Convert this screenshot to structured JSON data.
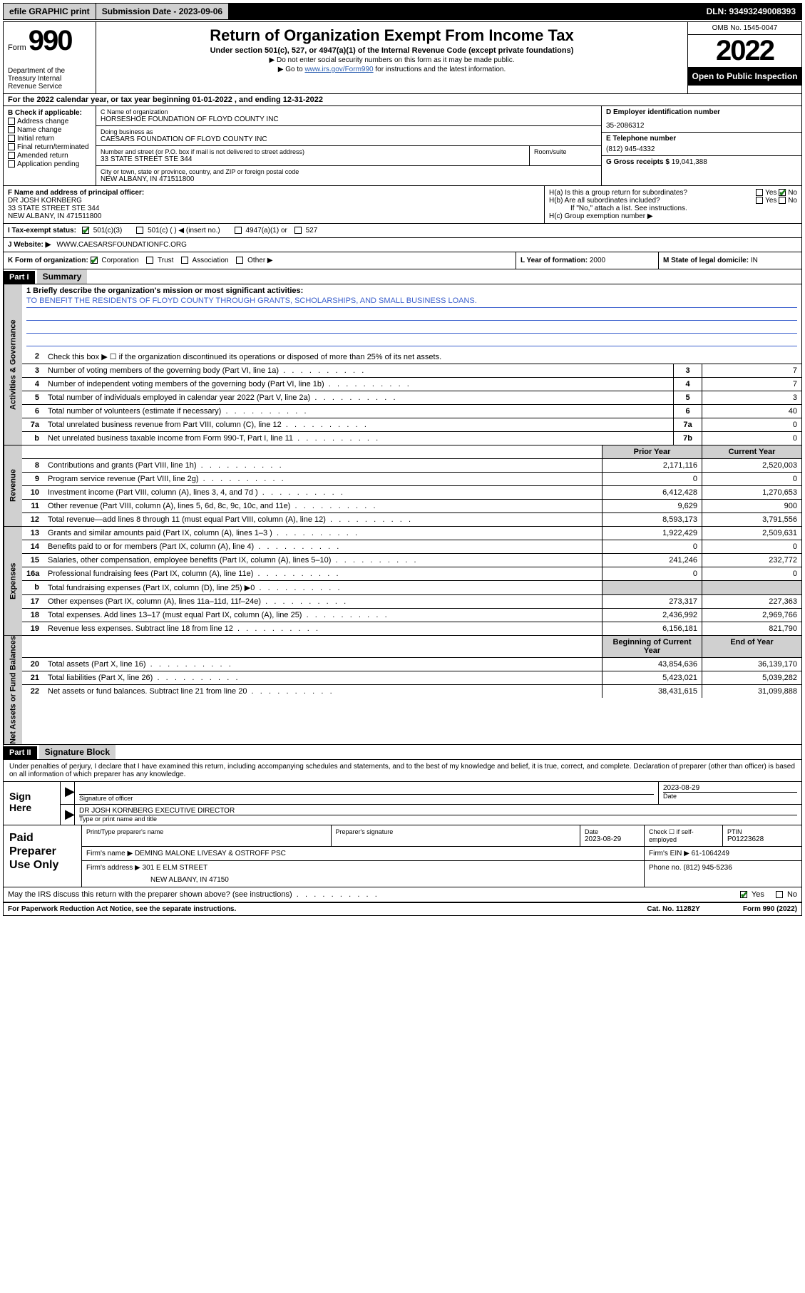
{
  "topbar": {
    "efile": "efile GRAPHIC print",
    "sub_label": "Submission Date - 2023-09-06",
    "dln": "DLN: 93493249008393"
  },
  "header": {
    "form_word": "Form",
    "form_num": "990",
    "dept": "Department of the Treasury Internal Revenue Service",
    "title": "Return of Organization Exempt From Income Tax",
    "sub": "Under section 501(c), 527, or 4947(a)(1) of the Internal Revenue Code (except private foundations)",
    "note1": "▶ Do not enter social security numbers on this form as it may be made public.",
    "note2_pre": "▶ Go to ",
    "note2_link": "www.irs.gov/Form990",
    "note2_post": " for instructions and the latest information.",
    "omb": "OMB No. 1545-0047",
    "year": "2022",
    "open": "Open to Public Inspection"
  },
  "period": "For the 2022 calendar year, or tax year beginning 01-01-2022   , and ending 12-31-2022",
  "sectionB": {
    "hdr": "B Check if applicable:",
    "items": [
      "Address change",
      "Name change",
      "Initial return",
      "Final return/terminated",
      "Amended return",
      "Application pending"
    ]
  },
  "sectionC": {
    "name_lbl": "C Name of organization",
    "name": "HORSESHOE FOUNDATION OF FLOYD COUNTY INC",
    "dba_lbl": "Doing business as",
    "dba": "CAESARS FOUNDATION OF FLOYD COUNTY INC",
    "addr_lbl": "Number and street (or P.O. box if mail is not delivered to street address)",
    "addr": "33 STATE STREET STE 344",
    "room_lbl": "Room/suite",
    "city_lbl": "City or town, state or province, country, and ZIP or foreign postal code",
    "city": "NEW ALBANY, IN  471511800"
  },
  "sectionD": {
    "ein_lbl": "D Employer identification number",
    "ein": "35-2086312",
    "tel_lbl": "E Telephone number",
    "tel": "(812) 945-4332",
    "gross_lbl": "G Gross receipts $",
    "gross": "19,041,388"
  },
  "sectionF": {
    "lbl": "F  Name and address of principal officer:",
    "name": "DR JOSH KORNBERG",
    "addr1": "33 STATE STREET STE 344",
    "addr2": "NEW ALBANY, IN  471511800"
  },
  "sectionH": {
    "a": "H(a)  Is this a group return for subordinates?",
    "b": "H(b)  Are all subordinates included?",
    "b_note": "If \"No,\" attach a list. See instructions.",
    "c": "H(c)  Group exemption number ▶"
  },
  "sectionI": {
    "lbl": "I    Tax-exempt status:",
    "opt1": "501(c)(3)",
    "opt2": "501(c) (  ) ◀ (insert no.)",
    "opt3": "4947(a)(1) or",
    "opt4": "527"
  },
  "sectionJ": {
    "lbl": "J   Website: ▶",
    "val": "WWW.CAESARSFOUNDATIONFC.ORG"
  },
  "sectionK": {
    "lbl": "K Form of organization:",
    "opts": [
      "Corporation",
      "Trust",
      "Association",
      "Other ▶"
    ],
    "l_lbl": "L Year of formation:",
    "l_val": "2000",
    "m_lbl": "M State of legal domicile:",
    "m_val": "IN"
  },
  "part1": {
    "hdr": "Part I",
    "title": "Summary",
    "line1_lbl": "1  Briefly describe the organization's mission or most significant activities:",
    "line1_val": "TO BENEFIT THE RESIDENTS OF FLOYD COUNTY THROUGH GRANTS, SCHOLARSHIPS, AND SMALL BUSINESS LOANS.",
    "line2": "Check this box ▶ ☐  if the organization discontinued its operations or disposed of more than 25% of its net assets.",
    "gov_label": "Activities & Governance",
    "rev_label": "Revenue",
    "exp_label": "Expenses",
    "net_label": "Net Assets or Fund Balances",
    "gov_lines": [
      {
        "n": "3",
        "d": "Number of voting members of the governing body (Part VI, line 1a)",
        "box": "3",
        "v": "7"
      },
      {
        "n": "4",
        "d": "Number of independent voting members of the governing body (Part VI, line 1b)",
        "box": "4",
        "v": "7"
      },
      {
        "n": "5",
        "d": "Total number of individuals employed in calendar year 2022 (Part V, line 2a)",
        "box": "5",
        "v": "3"
      },
      {
        "n": "6",
        "d": "Total number of volunteers (estimate if necessary)",
        "box": "6",
        "v": "40"
      },
      {
        "n": "7a",
        "d": "Total unrelated business revenue from Part VIII, column (C), line 12",
        "box": "7a",
        "v": "0"
      },
      {
        "n": "b",
        "d": "Net unrelated business taxable income from Form 990-T, Part I, line 11",
        "box": "7b",
        "v": "0"
      }
    ],
    "col_hdr_prior": "Prior Year",
    "col_hdr_curr": "Current Year",
    "rev_lines": [
      {
        "n": "8",
        "d": "Contributions and grants (Part VIII, line 1h)",
        "p": "2,171,116",
        "c": "2,520,003"
      },
      {
        "n": "9",
        "d": "Program service revenue (Part VIII, line 2g)",
        "p": "0",
        "c": "0"
      },
      {
        "n": "10",
        "d": "Investment income (Part VIII, column (A), lines 3, 4, and 7d )",
        "p": "6,412,428",
        "c": "1,270,653"
      },
      {
        "n": "11",
        "d": "Other revenue (Part VIII, column (A), lines 5, 6d, 8c, 9c, 10c, and 11e)",
        "p": "9,629",
        "c": "900"
      },
      {
        "n": "12",
        "d": "Total revenue—add lines 8 through 11 (must equal Part VIII, column (A), line 12)",
        "p": "8,593,173",
        "c": "3,791,556"
      }
    ],
    "exp_lines": [
      {
        "n": "13",
        "d": "Grants and similar amounts paid (Part IX, column (A), lines 1–3 )",
        "p": "1,922,429",
        "c": "2,509,631"
      },
      {
        "n": "14",
        "d": "Benefits paid to or for members (Part IX, column (A), line 4)",
        "p": "0",
        "c": "0"
      },
      {
        "n": "15",
        "d": "Salaries, other compensation, employee benefits (Part IX, column (A), lines 5–10)",
        "p": "241,246",
        "c": "232,772"
      },
      {
        "n": "16a",
        "d": "Professional fundraising fees (Part IX, column (A), line 11e)",
        "p": "0",
        "c": "0"
      },
      {
        "n": "b",
        "d": "Total fundraising expenses (Part IX, column (D), line 25) ▶0",
        "p": "",
        "c": "",
        "shade": true
      },
      {
        "n": "17",
        "d": "Other expenses (Part IX, column (A), lines 11a–11d, 11f–24e)",
        "p": "273,317",
        "c": "227,363"
      },
      {
        "n": "18",
        "d": "Total expenses. Add lines 13–17 (must equal Part IX, column (A), line 25)",
        "p": "2,436,992",
        "c": "2,969,766"
      },
      {
        "n": "19",
        "d": "Revenue less expenses. Subtract line 18 from line 12",
        "p": "6,156,181",
        "c": "821,790"
      }
    ],
    "net_hdr_prior": "Beginning of Current Year",
    "net_hdr_curr": "End of Year",
    "net_lines": [
      {
        "n": "20",
        "d": "Total assets (Part X, line 16)",
        "p": "43,854,636",
        "c": "36,139,170"
      },
      {
        "n": "21",
        "d": "Total liabilities (Part X, line 26)",
        "p": "5,423,021",
        "c": "5,039,282"
      },
      {
        "n": "22",
        "d": "Net assets or fund balances. Subtract line 21 from line 20",
        "p": "38,431,615",
        "c": "31,099,888"
      }
    ]
  },
  "part2": {
    "hdr": "Part II",
    "title": "Signature Block",
    "intro": "Under penalties of perjury, I declare that I have examined this return, including accompanying schedules and statements, and to the best of my knowledge and belief, it is true, correct, and complete. Declaration of preparer (other than officer) is based on all information of which preparer has any knowledge.",
    "sign_here": "Sign Here",
    "sig_officer_lbl": "Signature of officer",
    "sig_date": "2023-08-29",
    "date_lbl": "Date",
    "officer_name": "DR JOSH KORNBERG  EXECUTIVE DIRECTOR",
    "officer_sub": "Type or print name and title",
    "paid_hdr": "Paid Preparer Use Only",
    "prep_name_lbl": "Print/Type preparer's name",
    "prep_sig_lbl": "Preparer's signature",
    "prep_date_lbl": "Date",
    "prep_date": "2023-08-29",
    "prep_self_lbl": "Check ☐ if self-employed",
    "ptin_lbl": "PTIN",
    "ptin": "P01223628",
    "firm_name_lbl": "Firm's name    ▶",
    "firm_name": "DEMING MALONE LIVESAY & OSTROFF PSC",
    "firm_ein_lbl": "Firm's EIN ▶",
    "firm_ein": "61-1064249",
    "firm_addr_lbl": "Firm's address ▶",
    "firm_addr1": "301 E ELM STREET",
    "firm_addr2": "NEW ALBANY, IN  47150",
    "firm_phone_lbl": "Phone no.",
    "firm_phone": "(812) 945-5236",
    "discuss": "May the IRS discuss this return with the preparer shown above? (see instructions)",
    "yes": "Yes",
    "no": "No"
  },
  "footer": {
    "left": "For Paperwork Reduction Act Notice, see the separate instructions.",
    "mid": "Cat. No. 11282Y",
    "right": "Form 990 (2022)"
  }
}
